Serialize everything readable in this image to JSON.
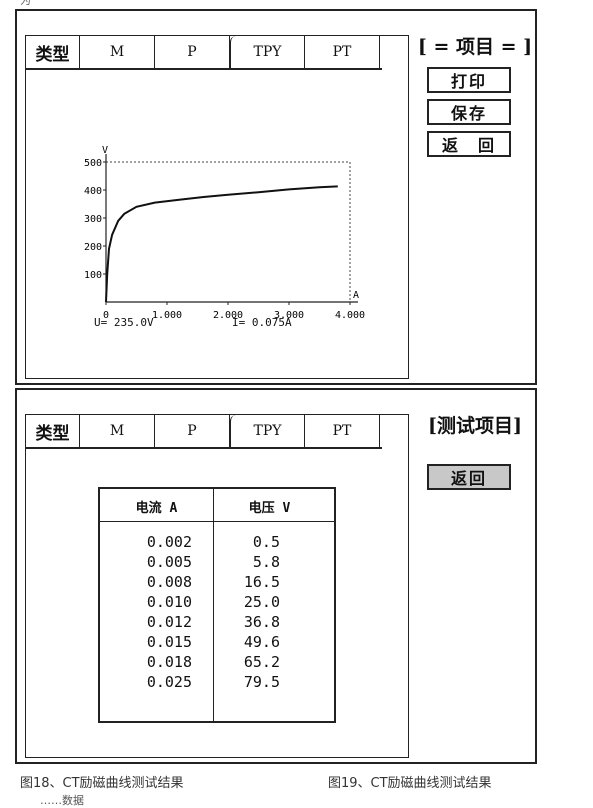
{
  "top_left_mark": "为",
  "tabs": [
    "类型",
    "M",
    "P",
    "TPY",
    "PT"
  ],
  "panel1": {
    "side_title": "[ = 项目 = ]",
    "buttons": [
      "打印",
      "保存",
      "返　回"
    ],
    "readout_u": "U=  235.0V",
    "readout_i": "I=  0.075A"
  },
  "panel2": {
    "side_title": "[测试项目]",
    "back_button": "返回",
    "table": {
      "headers": [
        "电流 A",
        "电压 V"
      ],
      "current": [
        "0.002",
        "0.005",
        "0.008",
        "0.010",
        "0.012",
        "0.015",
        "0.018",
        "0.025"
      ],
      "voltage": [
        "0.5",
        "5.8",
        "16.5",
        "25.0",
        "36.8",
        "49.6",
        "65.2",
        "79.5"
      ]
    }
  },
  "captions": [
    "图18、CT励磁曲线测试结果",
    "图19、CT励磁曲线测试结果"
  ],
  "footer": "……数据",
  "chart_data": {
    "type": "line",
    "x": [
      0,
      0.02,
      0.05,
      0.1,
      0.2,
      0.3,
      0.5,
      0.8,
      1.2,
      1.6,
      2.0,
      2.5,
      3.0,
      3.5,
      3.8
    ],
    "y": [
      0,
      100,
      190,
      240,
      290,
      315,
      340,
      355,
      365,
      375,
      383,
      392,
      402,
      410,
      413
    ],
    "xlabel": "A",
    "ylabel": "V",
    "xticks": [
      "0",
      "1.000",
      "2.000",
      "3.000",
      "4.000"
    ],
    "yticks": [
      "100",
      "200",
      "300",
      "400",
      "500"
    ],
    "xlim": [
      0,
      4.0
    ],
    "ylim": [
      0,
      500
    ],
    "grid": false
  }
}
